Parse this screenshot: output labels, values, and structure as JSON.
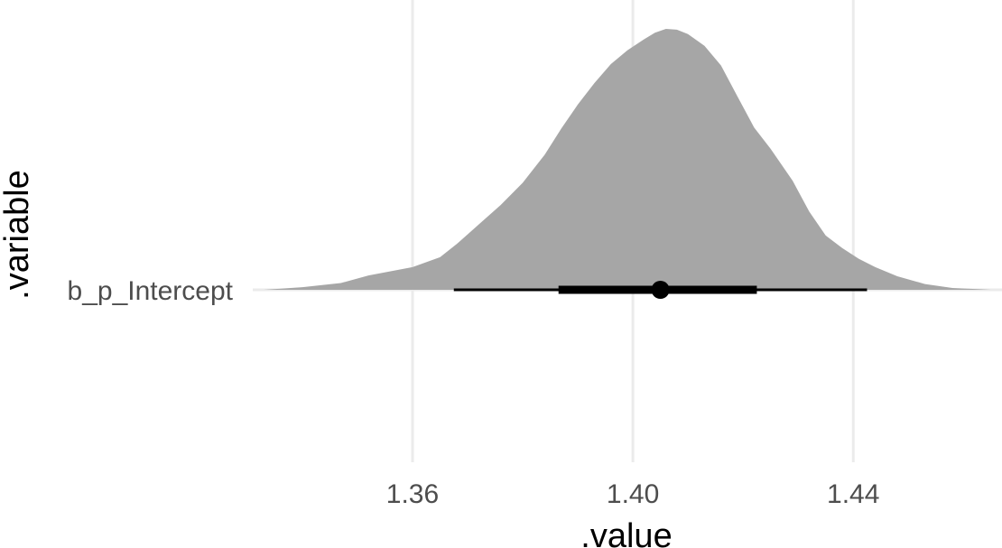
{
  "chart_data": {
    "type": "halfeye",
    "title": "",
    "xlabel": ".value",
    "ylabel": ".variable",
    "categories": [
      "b_p_Intercept"
    ],
    "xlim": [
      1.331,
      1.467
    ],
    "x_ticks": [
      {
        "value": 1.36,
        "label": "1.36"
      },
      {
        "value": 1.4,
        "label": "1.40"
      },
      {
        "value": 1.44,
        "label": "1.44"
      }
    ],
    "grid": true,
    "colors": {
      "density": "#a6a6a6",
      "interval": "#000000",
      "grid": "#ebebeb",
      "text": "#4d4d4d"
    },
    "series": [
      {
        "variable": "b_p_Intercept",
        "point_estimate": 1.405,
        "interval_66": [
          1.3865,
          1.4225
        ],
        "interval_95": [
          1.3675,
          1.4425
        ],
        "density": {
          "x": [
            1.333,
            1.34,
            1.347,
            1.352,
            1.356,
            1.36,
            1.365,
            1.368,
            1.372,
            1.376,
            1.38,
            1.384,
            1.387,
            1.39,
            1.393,
            1.396,
            1.399,
            1.402,
            1.404,
            1.406,
            1.408,
            1.41,
            1.413,
            1.416,
            1.419,
            1.422,
            1.425,
            1.429,
            1.432,
            1.435,
            1.438,
            1.441,
            1.444,
            1.448,
            1.453,
            1.458,
            1.463,
            1.465
          ],
          "y": [
            0.0,
            0.01,
            0.026,
            0.055,
            0.071,
            0.087,
            0.125,
            0.175,
            0.25,
            0.325,
            0.41,
            0.518,
            0.618,
            0.71,
            0.792,
            0.865,
            0.918,
            0.96,
            0.985,
            1.0,
            0.997,
            0.98,
            0.935,
            0.86,
            0.74,
            0.622,
            0.54,
            0.418,
            0.3,
            0.208,
            0.16,
            0.119,
            0.087,
            0.052,
            0.022,
            0.007,
            0.002,
            0.0
          ]
        }
      }
    ]
  }
}
